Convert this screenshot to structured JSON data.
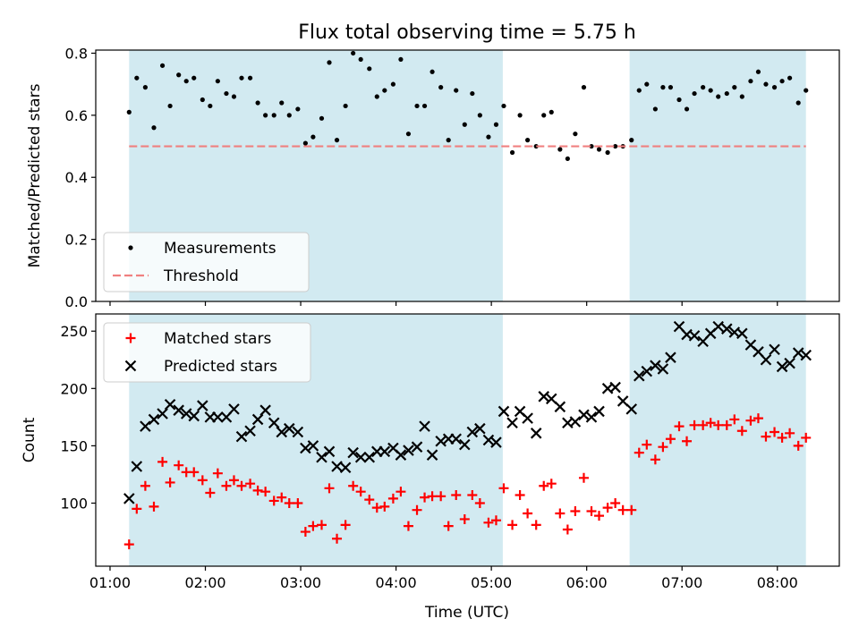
{
  "figure": {
    "title": "Flux total observing time = 5.75 h",
    "xlabel": "Time (UTC)",
    "x_ticks": [
      {
        "value": 1.0,
        "label": "01:00"
      },
      {
        "value": 2.0,
        "label": "02:00"
      },
      {
        "value": 3.0,
        "label": "03:00"
      },
      {
        "value": 4.0,
        "label": "04:00"
      },
      {
        "value": 5.0,
        "label": "05:00"
      },
      {
        "value": 6.0,
        "label": "06:00"
      },
      {
        "value": 7.0,
        "label": "07:00"
      },
      {
        "value": 8.0,
        "label": "08:00"
      }
    ],
    "xlim": [
      0.85,
      8.65
    ],
    "shaded_intervals": [
      [
        1.2,
        5.12
      ],
      [
        6.45,
        8.3
      ]
    ],
    "shade_color": "#add8e6"
  },
  "chart_data": [
    {
      "type": "scatter",
      "ylabel": "Matched/Predicted stars",
      "ylim": [
        0,
        0.81
      ],
      "y_ticks": [
        0.0,
        0.2,
        0.4,
        0.6,
        0.8
      ],
      "y_tick_labels": [
        "0.0",
        "0.2",
        "0.4",
        "0.6",
        "0.8"
      ],
      "legend_placement": "lower-left",
      "series": [
        {
          "name": "Measurements",
          "marker": "dot",
          "color": "#000000",
          "x": [
            1.2,
            1.28,
            1.37,
            1.46,
            1.55,
            1.63,
            1.72,
            1.8,
            1.88,
            1.97,
            2.05,
            2.13,
            2.22,
            2.3,
            2.38,
            2.47,
            2.55,
            2.63,
            2.72,
            2.8,
            2.88,
            2.97,
            3.05,
            3.13,
            3.22,
            3.3,
            3.38,
            3.47,
            3.55,
            3.63,
            3.72,
            3.8,
            3.88,
            3.97,
            4.05,
            4.13,
            4.22,
            4.3,
            4.38,
            4.47,
            4.55,
            4.63,
            4.72,
            4.8,
            4.88,
            4.97,
            5.05,
            5.13,
            5.22,
            5.3,
            5.38,
            5.47,
            5.55,
            5.63,
            5.72,
            5.8,
            5.88,
            5.97,
            6.05,
            6.13,
            6.22,
            6.3,
            6.38,
            6.47,
            6.55,
            6.63,
            6.72,
            6.8,
            6.88,
            6.97,
            7.05,
            7.13,
            7.22,
            7.3,
            7.38,
            7.47,
            7.55,
            7.63,
            7.72,
            7.8,
            7.88,
            7.97,
            8.05,
            8.13,
            8.22,
            8.3
          ],
          "y": [
            0.61,
            0.72,
            0.69,
            0.56,
            0.76,
            0.63,
            0.73,
            0.71,
            0.72,
            0.65,
            0.63,
            0.71,
            0.67,
            0.66,
            0.72,
            0.72,
            0.64,
            0.6,
            0.6,
            0.64,
            0.6,
            0.62,
            0.51,
            0.53,
            0.59,
            0.77,
            0.52,
            0.63,
            0.8,
            0.78,
            0.75,
            0.66,
            0.68,
            0.7,
            0.78,
            0.54,
            0.63,
            0.63,
            0.74,
            0.69,
            0.52,
            0.68,
            0.57,
            0.67,
            0.6,
            0.53,
            0.57,
            0.63,
            0.48,
            0.6,
            0.52,
            0.5,
            0.6,
            0.61,
            0.49,
            0.46,
            0.54,
            0.69,
            0.5,
            0.49,
            0.48,
            0.5,
            0.5,
            0.52,
            0.68,
            0.7,
            0.62,
            0.69,
            0.69,
            0.65,
            0.62,
            0.67,
            0.69,
            0.68,
            0.66,
            0.67,
            0.69,
            0.66,
            0.71,
            0.74,
            0.7,
            0.69,
            0.71,
            0.72,
            0.64,
            0.68
          ]
        },
        {
          "name": "Threshold",
          "marker": "dashed-line",
          "color": "#f08080",
          "x": [
            1.2,
            8.3
          ],
          "y": [
            0.5,
            0.5
          ]
        }
      ]
    },
    {
      "type": "scatter",
      "ylabel": "Count",
      "ylim": [
        45,
        265
      ],
      "y_ticks": [
        100,
        150,
        200,
        250
      ],
      "y_tick_labels": [
        "100",
        "150",
        "200",
        "250"
      ],
      "legend_placement": "upper-left",
      "series": [
        {
          "name": "Matched stars",
          "marker": "plus",
          "color": "#ff0000",
          "x": [
            1.2,
            1.28,
            1.37,
            1.46,
            1.55,
            1.63,
            1.72,
            1.8,
            1.88,
            1.97,
            2.05,
            2.13,
            2.22,
            2.3,
            2.38,
            2.47,
            2.55,
            2.63,
            2.72,
            2.8,
            2.88,
            2.97,
            3.05,
            3.13,
            3.22,
            3.3,
            3.38,
            3.47,
            3.55,
            3.63,
            3.72,
            3.8,
            3.88,
            3.97,
            4.05,
            4.13,
            4.22,
            4.3,
            4.38,
            4.47,
            4.55,
            4.63,
            4.72,
            4.8,
            4.88,
            4.97,
            5.05,
            5.13,
            5.22,
            5.3,
            5.38,
            5.47,
            5.55,
            5.63,
            5.72,
            5.8,
            5.88,
            5.97,
            6.05,
            6.13,
            6.22,
            6.3,
            6.38,
            6.47,
            6.55,
            6.63,
            6.72,
            6.8,
            6.88,
            6.97,
            7.05,
            7.13,
            7.22,
            7.3,
            7.38,
            7.47,
            7.55,
            7.63,
            7.72,
            7.8,
            7.88,
            7.97,
            8.05,
            8.13,
            8.22,
            8.3
          ],
          "y": [
            64,
            95,
            115,
            97,
            136,
            118,
            133,
            127,
            127,
            120,
            109,
            126,
            115,
            120,
            115,
            117,
            111,
            110,
            102,
            105,
            100,
            100,
            75,
            80,
            81,
            113,
            69,
            81,
            115,
            110,
            103,
            96,
            97,
            104,
            110,
            80,
            94,
            105,
            106,
            106,
            80,
            107,
            86,
            107,
            100,
            83,
            85,
            113,
            81,
            107,
            91,
            81,
            115,
            117,
            91,
            77,
            93,
            122,
            93,
            89,
            96,
            100,
            94,
            94,
            144,
            151,
            138,
            149,
            156,
            167,
            154,
            168,
            168,
            170,
            168,
            168,
            173,
            163,
            172,
            174,
            158,
            162,
            157,
            161,
            150,
            157
          ]
        },
        {
          "name": "Predicted stars",
          "marker": "x",
          "color": "#000000",
          "x": [
            1.2,
            1.28,
            1.37,
            1.46,
            1.55,
            1.63,
            1.72,
            1.8,
            1.88,
            1.97,
            2.05,
            2.13,
            2.22,
            2.3,
            2.38,
            2.47,
            2.55,
            2.63,
            2.72,
            2.8,
            2.88,
            2.97,
            3.05,
            3.13,
            3.22,
            3.3,
            3.38,
            3.47,
            3.55,
            3.63,
            3.72,
            3.8,
            3.88,
            3.97,
            4.05,
            4.13,
            4.22,
            4.3,
            4.38,
            4.47,
            4.55,
            4.63,
            4.72,
            4.8,
            4.88,
            4.97,
            5.05,
            5.13,
            5.22,
            5.3,
            5.38,
            5.47,
            5.55,
            5.63,
            5.72,
            5.8,
            5.88,
            5.97,
            6.05,
            6.13,
            6.22,
            6.3,
            6.38,
            6.47,
            6.55,
            6.63,
            6.72,
            6.8,
            6.88,
            6.97,
            7.05,
            7.13,
            7.22,
            7.3,
            7.38,
            7.47,
            7.55,
            7.63,
            7.72,
            7.8,
            7.88,
            7.97,
            8.05,
            8.13,
            8.22,
            8.3
          ],
          "y": [
            104,
            132,
            167,
            173,
            178,
            186,
            181,
            178,
            176,
            185,
            175,
            175,
            175,
            182,
            158,
            163,
            173,
            181,
            170,
            162,
            165,
            162,
            148,
            150,
            140,
            145,
            132,
            131,
            144,
            140,
            140,
            145,
            145,
            148,
            142,
            146,
            149,
            167,
            142,
            154,
            156,
            156,
            151,
            162,
            165,
            155,
            153,
            180,
            170,
            180,
            174,
            161,
            193,
            191,
            184,
            170,
            171,
            177,
            175,
            180,
            200,
            201,
            189,
            182,
            211,
            215,
            220,
            217,
            227,
            254,
            247,
            246,
            241,
            248,
            254,
            252,
            249,
            248,
            238,
            232,
            225,
            234,
            219,
            222,
            231,
            229
          ]
        }
      ]
    }
  ]
}
